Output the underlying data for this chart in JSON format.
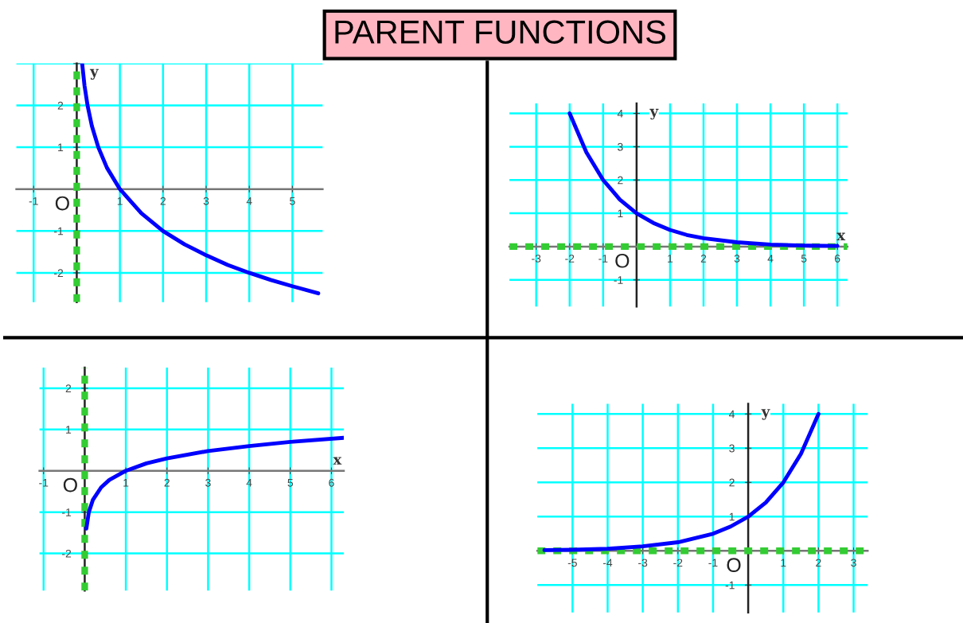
{
  "chart_data": [
    {
      "type": "line",
      "title": "PARENT FUNCTIONS",
      "ylabel": "y",
      "series": [
        {
          "color": "#0000ff",
          "x": [
            0.125,
            0.18,
            0.25,
            0.35,
            0.5,
            0.7,
            1,
            1.5,
            2,
            2.5,
            3,
            3.5,
            4,
            4.5,
            5,
            5.6
          ],
          "values": [
            3,
            2.47,
            2,
            1.51,
            1,
            0.51,
            0,
            -0.58,
            -1,
            -1.32,
            -1.58,
            -1.81,
            -2,
            -2.17,
            -2.32,
            -2.49
          ]
        }
      ],
      "xlim": [
        -1.4,
        5.7
      ],
      "ylim": [
        -2.7,
        3.0
      ],
      "xticks": [
        -1,
        1,
        2,
        3,
        4,
        5
      ],
      "yticks": [
        -2,
        -1,
        1,
        2,
        {
          "value": 3,
          "label": null
        }
      ],
      "grid": true,
      "ref_lines": [
        {
          "axis": "x",
          "value": 0,
          "color": "#33cc33",
          "line_style": "dotted"
        }
      ],
      "annotations": [
        "O"
      ]
    },
    {
      "type": "line",
      "xlabel": "x",
      "ylabel": "y",
      "series": [
        {
          "color": "#0000ff",
          "x": [
            -2,
            -1.5,
            -1,
            -0.5,
            0,
            0.5,
            1,
            1.5,
            2,
            3,
            4,
            5,
            6
          ],
          "values": [
            4,
            2.83,
            2,
            1.41,
            1,
            0.71,
            0.5,
            0.35,
            0.25,
            0.13,
            0.06,
            0.03,
            0.02
          ]
        }
      ],
      "xlim": [
        -3.8,
        6.3
      ],
      "ylim": [
        -1.8,
        4.3
      ],
      "xticks": [
        -3,
        -2,
        -1,
        1,
        2,
        3,
        4,
        5,
        6
      ],
      "yticks": [
        -1,
        1,
        2,
        3,
        4
      ],
      "grid": true,
      "ref_lines": [
        {
          "axis": "y",
          "value": 0,
          "color": "#33cc33",
          "line_style": "dotted"
        }
      ],
      "annotations": [
        "O"
      ]
    },
    {
      "type": "line",
      "xlabel": "x",
      "series": [
        {
          "color": "#0000ff",
          "x": [
            0.04,
            0.1,
            0.2,
            0.4,
            0.6,
            1,
            1.5,
            2,
            3,
            4,
            5,
            6.3
          ],
          "values": [
            -1.4,
            -1,
            -0.7,
            -0.4,
            -0.22,
            0,
            0.18,
            0.3,
            0.48,
            0.6,
            0.7,
            0.8
          ]
        }
      ],
      "xlim": [
        -1.1,
        6.3
      ],
      "ylim": [
        -2.9,
        2.5
      ],
      "xticks": [
        -1,
        1,
        2,
        3,
        4,
        5,
        6
      ],
      "yticks": [
        -2,
        -1,
        1,
        2
      ],
      "grid": true,
      "ref_lines": [
        {
          "axis": "x",
          "value": 0,
          "color": "#33cc33",
          "line_style": "dotted"
        }
      ],
      "annotations": [
        "O"
      ]
    },
    {
      "type": "line",
      "ylabel": "y",
      "series": [
        {
          "color": "#0000ff",
          "x": [
            -5.8,
            -5,
            -4,
            -3,
            -2,
            -1,
            -0.5,
            0,
            0.5,
            1,
            1.5,
            2
          ],
          "values": [
            0.02,
            0.03,
            0.06,
            0.13,
            0.25,
            0.5,
            0.71,
            1,
            1.41,
            2,
            2.83,
            4
          ]
        }
      ],
      "xlim": [
        -6,
        3.4
      ],
      "ylim": [
        -1.8,
        4.3
      ],
      "xticks": [
        -5,
        -4,
        -3,
        -2,
        -1,
        1,
        2,
        3
      ],
      "yticks": [
        -1,
        1,
        2,
        3,
        4
      ],
      "grid": true,
      "ref_lines": [
        {
          "axis": "y",
          "value": 0,
          "color": "#33cc33",
          "line_style": "dotted"
        }
      ],
      "annotations": [
        "O"
      ]
    }
  ]
}
